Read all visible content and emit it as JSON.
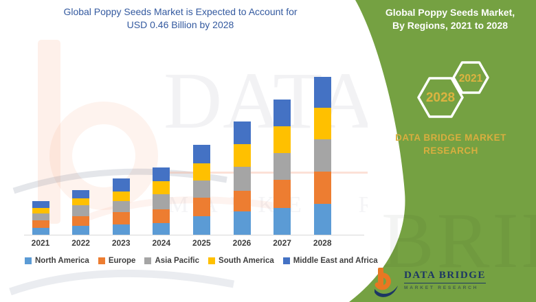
{
  "header": {
    "chart_title_line1": "Global Poppy Seeds Market is Expected to Account for",
    "chart_title_line2": "USD 0.46 Billion by 2028"
  },
  "side_panel": {
    "title_line1": "Global Poppy Seeds Market,",
    "title_line2": "By Regions, 2021 to 2028",
    "hex_small_year": "2021",
    "hex_large_year": "2028",
    "brand_text_line1": "DATA BRIDGE MARKET",
    "brand_text_line2": "RESEARCH",
    "panel_green": "#75A142",
    "gold": "#D8AE3F",
    "hex_year_gold": "#DCB340"
  },
  "logo": {
    "name_line": "DATA BRIDGE",
    "tagline": "MARKET RESEARCH"
  },
  "watermark": {
    "text_large": "DATA BRIDGE",
    "text_small": "MARKET RESEARCH",
    "panel_text": "BRIDGE"
  },
  "chart_data": {
    "type": "bar",
    "stacked": true,
    "title": "Global Poppy Seeds Market, By Regions, 2021 to 2028",
    "unit": "USD Billion",
    "categories": [
      "2021",
      "2022",
      "2023",
      "2024",
      "2025",
      "2026",
      "2027",
      "2028"
    ],
    "series": [
      {
        "name": "North America",
        "color": "#5B9BD5",
        "values": [
          0.021,
          0.027,
          0.031,
          0.035,
          0.054,
          0.068,
          0.078,
          0.09
        ]
      },
      {
        "name": "Europe",
        "color": "#ED7D31",
        "values": [
          0.021,
          0.028,
          0.035,
          0.04,
          0.055,
          0.06,
          0.082,
          0.094
        ]
      },
      {
        "name": "Asia Pacific",
        "color": "#A5A5A5",
        "values": [
          0.02,
          0.031,
          0.033,
          0.043,
          0.05,
          0.07,
          0.079,
          0.095
        ]
      },
      {
        "name": "South America",
        "color": "#FFC000",
        "values": [
          0.017,
          0.02,
          0.027,
          0.039,
          0.05,
          0.066,
          0.078,
          0.092
        ]
      },
      {
        "name": "Middle East and Africa",
        "color": "#4472C4",
        "values": [
          0.019,
          0.025,
          0.039,
          0.04,
          0.053,
          0.067,
          0.077,
          0.089
        ]
      }
    ],
    "totals": [
      0.098,
      0.131,
      0.165,
      0.197,
      0.262,
      0.331,
      0.394,
      0.46
    ],
    "highlight_total_2028": "0.46",
    "ylim": [
      0,
      0.48
    ],
    "grid": false,
    "legend_position": "bottom",
    "axis_color": "#D9D9D9"
  }
}
